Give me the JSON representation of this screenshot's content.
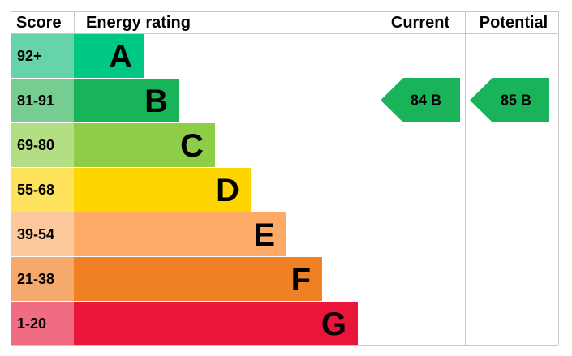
{
  "header": {
    "score": "Score",
    "rating": "Energy rating",
    "current": "Current",
    "potential": "Potential"
  },
  "rows": [
    {
      "score": "92+",
      "letter": "A",
      "color": "#00c781",
      "score_color": "#66d4a8"
    },
    {
      "score": "81-91",
      "letter": "B",
      "color": "#19b459",
      "score_color": "#75cd92"
    },
    {
      "score": "69-80",
      "letter": "C",
      "color": "#8dce46",
      "score_color": "#b3de84"
    },
    {
      "score": "55-68",
      "letter": "D",
      "color": "#ffd500",
      "score_color": "#ffe35c"
    },
    {
      "score": "39-54",
      "letter": "E",
      "color": "#fcaa65",
      "score_color": "#fdc99c"
    },
    {
      "score": "21-38",
      "letter": "F",
      "color": "#ef8023",
      "score_color": "#f5a96c"
    },
    {
      "score": "1-20",
      "letter": "G",
      "color": "#e9153b",
      "score_color": "#f06c83"
    }
  ],
  "current": {
    "label": "84 B",
    "color": "#19b459"
  },
  "potential": {
    "label": "85 B",
    "color": "#19b459"
  }
}
